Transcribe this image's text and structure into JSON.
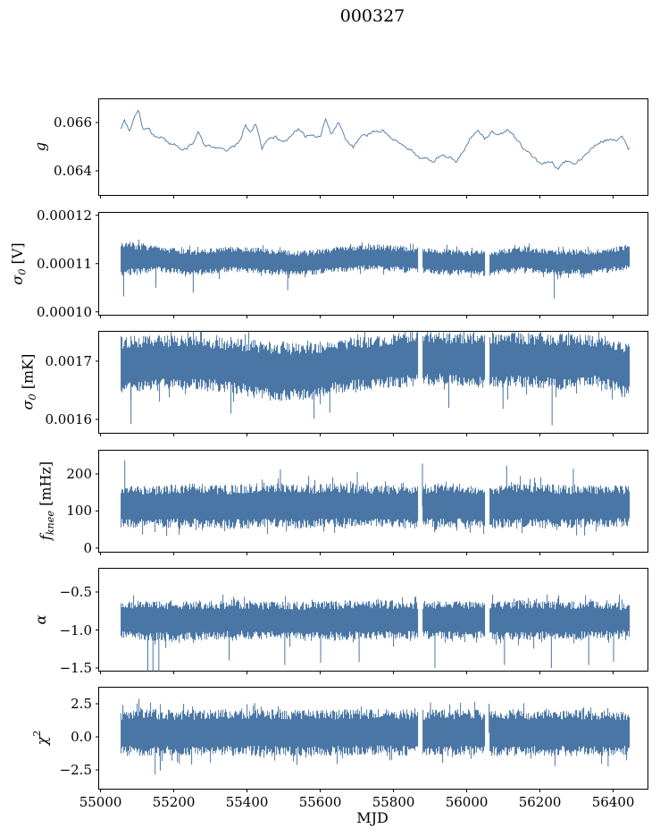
{
  "figure": {
    "title": "000327",
    "xlabel": "MJD",
    "line_color": "#4a76a5",
    "axis_color": "#000000",
    "background": "#ffffff",
    "xlim": [
      54995,
      56495
    ],
    "xticks": [
      55000,
      55200,
      55400,
      55600,
      55800,
      56000,
      56200,
      56400
    ],
    "xtick_labels": [
      "55000",
      "55200",
      "55400",
      "55600",
      "55800",
      "56000",
      "56200",
      "56400"
    ],
    "data_range": [
      55055,
      56445
    ],
    "gaps": [
      [
        55866,
        55877
      ],
      [
        56050,
        56061
      ]
    ]
  },
  "chart_data": [
    {
      "type": "line",
      "name": "gain",
      "ylabel": {
        "main": "g",
        "sub": "",
        "sup": "",
        "unit": ""
      },
      "ylim": [
        0.063,
        0.067
      ],
      "yticks": [
        {
          "v": 0.066,
          "label": "0.066"
        },
        {
          "v": 0.064,
          "label": "0.064"
        }
      ],
      "x": [
        55055,
        55065,
        55080,
        55095,
        55105,
        55115,
        55130,
        55145,
        55160,
        55175,
        55195,
        55215,
        55235,
        55255,
        55265,
        55280,
        55300,
        55320,
        55340,
        55360,
        55380,
        55395,
        55410,
        55425,
        55440,
        55460,
        55480,
        55500,
        55520,
        55540,
        55560,
        55580,
        55600,
        55615,
        55630,
        55650,
        55670,
        55690,
        55710,
        55730,
        55750,
        55770,
        55790,
        55810,
        55830,
        55850,
        55870,
        55890,
        55910,
        55930,
        55950,
        55970,
        55990,
        56010,
        56030,
        56050,
        56070,
        56090,
        56110,
        56130,
        56150,
        56170,
        56190,
        56210,
        56230,
        56250,
        56270,
        56290,
        56310,
        56330,
        56350,
        56370,
        56390,
        56410,
        56425,
        56440
      ],
      "y": [
        0.0658,
        0.0661,
        0.0656,
        0.0663,
        0.0665,
        0.0658,
        0.0657,
        0.0655,
        0.0654,
        0.0653,
        0.0651,
        0.065,
        0.0649,
        0.0652,
        0.0657,
        0.0651,
        0.065,
        0.0649,
        0.0648,
        0.065,
        0.0652,
        0.0659,
        0.0656,
        0.066,
        0.0649,
        0.0653,
        0.0654,
        0.0652,
        0.0655,
        0.0657,
        0.0654,
        0.0655,
        0.0654,
        0.0661,
        0.0655,
        0.066,
        0.0653,
        0.065,
        0.0654,
        0.0655,
        0.0656,
        0.0657,
        0.0654,
        0.0653,
        0.065,
        0.0648,
        0.0645,
        0.0646,
        0.0644,
        0.0647,
        0.0645,
        0.0644,
        0.0648,
        0.0654,
        0.0657,
        0.0653,
        0.0656,
        0.0655,
        0.0657,
        0.0654,
        0.065,
        0.0647,
        0.0644,
        0.0643,
        0.0644,
        0.0641,
        0.0644,
        0.0643,
        0.0645,
        0.0648,
        0.0651,
        0.0652,
        0.0653,
        0.0652,
        0.0655,
        0.0649
      ]
    },
    {
      "type": "band",
      "name": "sigma0_volts",
      "ylabel": {
        "main": "σ",
        "sub": "0",
        "sup": "",
        "unit": " [V]"
      },
      "ylim": [
        9.94e-05,
        0.0001207
      ],
      "yticks": [
        {
          "v": 0.00012,
          "label": "0.00012"
        },
        {
          "v": 0.00011,
          "label": "0.00011"
        },
        {
          "v": 0.0001,
          "label": "0.00010"
        }
      ],
      "envelope": {
        "x": [
          55055,
          55150,
          55250,
          55350,
          55450,
          55550,
          55650,
          55750,
          55850,
          55950,
          56050,
          56150,
          56250,
          56350,
          56445
        ],
        "lo": [
          0.0001072,
          0.0001082,
          0.0001076,
          0.0001082,
          0.0001078,
          0.0001074,
          0.0001082,
          0.0001086,
          0.000108,
          0.0001076,
          0.0001074,
          0.0001082,
          0.0001076,
          0.0001076,
          0.0001088
        ],
        "hi": [
          0.0001148,
          0.0001138,
          0.0001128,
          0.0001136,
          0.0001132,
          0.0001126,
          0.0001136,
          0.000114,
          0.0001136,
          0.000113,
          0.0001126,
          0.0001136,
          0.000113,
          0.000113,
          0.000114
        ]
      },
      "spikes": [
        {
          "x": 55062,
          "y": 0.0001032
        },
        {
          "x": 55150,
          "y": 0.000105
        },
        {
          "x": 55252,
          "y": 0.000104
        },
        {
          "x": 55510,
          "y": 0.0001045
        },
        {
          "x": 56238,
          "y": 0.0001028
        }
      ]
    },
    {
      "type": "band",
      "name": "sigma0_millikelvin",
      "ylabel": {
        "main": "σ",
        "sub": "0",
        "sup": "",
        "unit": " [mK]"
      },
      "ylim": [
        0.001577,
        0.001752
      ],
      "yticks": [
        {
          "v": 0.0017,
          "label": "0.0017"
        },
        {
          "v": 0.0016,
          "label": "0.0016"
        }
      ],
      "envelope": {
        "x": [
          55055,
          55150,
          55250,
          55350,
          55450,
          55550,
          55650,
          55750,
          55850,
          55950,
          56050,
          56150,
          56250,
          56350,
          56445
        ],
        "lo": [
          0.001645,
          0.001648,
          0.001652,
          0.001645,
          0.001632,
          0.00163,
          0.001645,
          0.001652,
          0.001655,
          0.00166,
          0.001652,
          0.001655,
          0.00165,
          0.001656,
          0.00164
        ],
        "hi": [
          0.001743,
          0.001746,
          0.001744,
          0.00174,
          0.001736,
          0.001732,
          0.001738,
          0.001744,
          0.001752,
          0.00175,
          0.00175,
          0.00175,
          0.001748,
          0.001744,
          0.00173
        ]
      },
      "spikes": [
        {
          "x": 55082,
          "y": 0.001592
        },
        {
          "x": 55355,
          "y": 0.00161
        },
        {
          "x": 55582,
          "y": 0.001601
        },
        {
          "x": 55625,
          "y": 0.001612
        },
        {
          "x": 55950,
          "y": 0.00162
        },
        {
          "x": 56098,
          "y": 0.001618
        },
        {
          "x": 56232,
          "y": 0.00159
        }
      ]
    },
    {
      "type": "band",
      "name": "f_knee",
      "ylabel": {
        "main": "f",
        "sub": "knee",
        "sup": "",
        "unit": " [mHz]"
      },
      "ylim": [
        -10,
        265
      ],
      "yticks": [
        {
          "v": 200,
          "label": "200"
        },
        {
          "v": 100,
          "label": "100"
        },
        {
          "v": 0,
          "label": "0"
        }
      ],
      "envelope": {
        "x": [
          55055,
          55150,
          55250,
          55350,
          55450,
          55550,
          55650,
          55750,
          55850,
          55950,
          56050,
          56150,
          56250,
          56350,
          56445
        ],
        "lo": [
          55,
          52,
          55,
          50,
          55,
          52,
          55,
          55,
          52,
          55,
          52,
          55,
          52,
          55,
          58
        ],
        "hi": [
          172,
          168,
          175,
          170,
          178,
          172,
          175,
          170,
          172,
          175,
          170,
          175,
          172,
          170,
          168
        ]
      },
      "spikes": [
        {
          "x": 55065,
          "y": 236
        },
        {
          "x": 55490,
          "y": 212
        },
        {
          "x": 55700,
          "y": 205
        },
        {
          "x": 55878,
          "y": 228
        },
        {
          "x": 56108,
          "y": 222
        },
        {
          "x": 56290,
          "y": 214
        }
      ]
    },
    {
      "type": "band",
      "name": "alpha",
      "ylabel": {
        "main": "α",
        "sub": "",
        "sup": "",
        "unit": ""
      },
      "ylim": [
        -1.535,
        -0.182
      ],
      "yticks": [
        {
          "v": -0.5,
          "label": "−0.5"
        },
        {
          "v": -1.0,
          "label": "−1.0"
        },
        {
          "v": -1.5,
          "label": "−1.5"
        }
      ],
      "envelope": {
        "x": [
          55055,
          55150,
          55250,
          55350,
          55450,
          55550,
          55650,
          55750,
          55850,
          55950,
          56050,
          56150,
          56250,
          56350,
          56445
        ],
        "lo": [
          -1.12,
          -1.15,
          -1.14,
          -1.12,
          -1.13,
          -1.12,
          -1.14,
          -1.12,
          -1.12,
          -1.13,
          -1.12,
          -1.14,
          -1.13,
          -1.12,
          -1.1
        ],
        "hi": [
          -0.63,
          -0.6,
          -0.62,
          -0.61,
          -0.62,
          -0.63,
          -0.61,
          -0.6,
          -0.62,
          -0.61,
          -0.63,
          -0.6,
          -0.62,
          -0.62,
          -0.64
        ]
      },
      "spikes": [
        {
          "x": 55128,
          "y": -1.56
        },
        {
          "x": 55142,
          "y": -1.6
        },
        {
          "x": 55158,
          "y": -1.58
        },
        {
          "x": 55350,
          "y": -1.4
        },
        {
          "x": 55502,
          "y": -1.46
        },
        {
          "x": 55600,
          "y": -1.43
        },
        {
          "x": 55705,
          "y": -1.42
        },
        {
          "x": 55912,
          "y": -1.5
        },
        {
          "x": 56102,
          "y": -1.46
        },
        {
          "x": 56230,
          "y": -1.5
        },
        {
          "x": 56332,
          "y": -1.46
        },
        {
          "x": 56400,
          "y": -1.42
        }
      ]
    },
    {
      "type": "band",
      "name": "chi_squared",
      "ylabel": {
        "main": "χ",
        "sub": "",
        "sup": "2",
        "unit": ""
      },
      "ylim": [
        -3.92,
        3.78
      ],
      "yticks": [
        {
          "v": 2.5,
          "label": "2.5"
        },
        {
          "v": 0.0,
          "label": "0.0"
        },
        {
          "v": -2.5,
          "label": "−2.5"
        }
      ],
      "envelope": {
        "x": [
          55055,
          55150,
          55250,
          55350,
          55450,
          55550,
          55650,
          55750,
          55850,
          55950,
          56050,
          56150,
          56250,
          56350,
          56445
        ],
        "lo": [
          -1.45,
          -1.5,
          -1.45,
          -1.42,
          -1.45,
          -1.48,
          -1.45,
          -1.42,
          -1.45,
          -1.48,
          -1.45,
          -1.48,
          -1.45,
          -1.45,
          -1.4
        ],
        "hi": [
          2.05,
          2.1,
          2.05,
          2.15,
          2.1,
          2.05,
          2.1,
          2.15,
          2.05,
          2.1,
          2.05,
          2.1,
          2.05,
          2.05,
          1.95
        ]
      },
      "spikes": [
        {
          "x": 55060,
          "y": 2.4
        },
        {
          "x": 55148,
          "y": -2.85
        },
        {
          "x": 55162,
          "y": -2.55
        },
        {
          "x": 55420,
          "y": 2.55
        },
        {
          "x": 55900,
          "y": 2.6
        },
        {
          "x": 56060,
          "y": 2.5
        },
        {
          "x": 56240,
          "y": -2.2
        },
        {
          "x": 56385,
          "y": -2.25
        }
      ]
    }
  ]
}
